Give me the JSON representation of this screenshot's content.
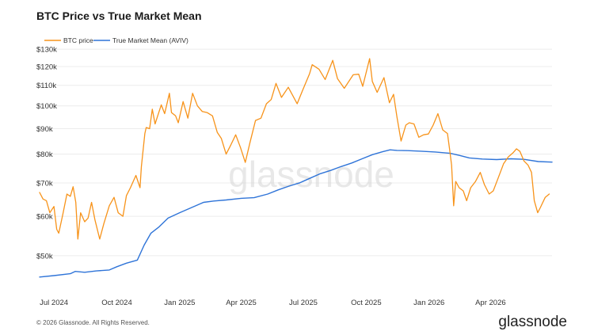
{
  "chart_data": {
    "type": "line",
    "title": "BTC Price vs True Market Mean",
    "ylabel": "",
    "xlabel": "",
    "y_scale": "log",
    "ylim": [
      43000,
      132000
    ],
    "x_range": [
      "2024-06-10",
      "2026-06-30"
    ],
    "grid": {
      "y": true,
      "x": false
    },
    "legend_position": "top-left",
    "y_ticks": [
      {
        "value": 130000,
        "label": "$130k"
      },
      {
        "value": 120000,
        "label": "$120k"
      },
      {
        "value": 110000,
        "label": "$110k"
      },
      {
        "value": 100000,
        "label": "$100k"
      },
      {
        "value": 90000,
        "label": "$90k"
      },
      {
        "value": 80000,
        "label": "$80k"
      },
      {
        "value": 70000,
        "label": "$70k"
      },
      {
        "value": 60000,
        "label": "$60k"
      },
      {
        "value": 50000,
        "label": "$50k"
      }
    ],
    "x_ticks": [
      {
        "date": "2024-07-01",
        "label": "Jul 2024"
      },
      {
        "date": "2024-10-01",
        "label": "Oct 2024"
      },
      {
        "date": "2025-01-01",
        "label": "Jan 2025"
      },
      {
        "date": "2025-04-01",
        "label": "Apr 2025"
      },
      {
        "date": "2025-07-01",
        "label": "Jul 2025"
      },
      {
        "date": "2025-10-01",
        "label": "Oct 2025"
      },
      {
        "date": "2026-01-01",
        "label": "Jan 2026"
      },
      {
        "date": "2026-04-01",
        "label": "Apr 2026"
      }
    ],
    "series": [
      {
        "name": "BTC price",
        "color": "#f7931a",
        "points": [
          [
            "2024-06-10",
            67000
          ],
          [
            "2024-06-15",
            65000
          ],
          [
            "2024-06-20",
            64500
          ],
          [
            "2024-06-25",
            61000
          ],
          [
            "2024-07-01",
            62800
          ],
          [
            "2024-07-05",
            56500
          ],
          [
            "2024-07-08",
            55500
          ],
          [
            "2024-07-14",
            60500
          ],
          [
            "2024-07-20",
            66500
          ],
          [
            "2024-07-25",
            65800
          ],
          [
            "2024-07-29",
            68800
          ],
          [
            "2024-08-02",
            64000
          ],
          [
            "2024-08-05",
            54000
          ],
          [
            "2024-08-09",
            61000
          ],
          [
            "2024-08-15",
            58500
          ],
          [
            "2024-08-20",
            59500
          ],
          [
            "2024-08-25",
            64000
          ],
          [
            "2024-08-30",
            59000
          ],
          [
            "2024-09-06",
            54000
          ],
          [
            "2024-09-12",
            58000
          ],
          [
            "2024-09-20",
            63000
          ],
          [
            "2024-09-27",
            65500
          ],
          [
            "2024-10-03",
            61000
          ],
          [
            "2024-10-10",
            60000
          ],
          [
            "2024-10-15",
            66000
          ],
          [
            "2024-10-21",
            68500
          ],
          [
            "2024-10-29",
            72500
          ],
          [
            "2024-11-04",
            68500
          ],
          [
            "2024-11-06",
            75500
          ],
          [
            "2024-11-11",
            88000
          ],
          [
            "2024-11-13",
            90500
          ],
          [
            "2024-11-18",
            90000
          ],
          [
            "2024-11-22",
            98500
          ],
          [
            "2024-11-26",
            92000
          ],
          [
            "2024-12-05",
            100500
          ],
          [
            "2024-12-10",
            96500
          ],
          [
            "2024-12-17",
            106000
          ],
          [
            "2024-12-20",
            97000
          ],
          [
            "2024-12-26",
            95500
          ],
          [
            "2024-12-30",
            92500
          ],
          [
            "2025-01-06",
            102000
          ],
          [
            "2025-01-13",
            94500
          ],
          [
            "2025-01-20",
            106000
          ],
          [
            "2025-01-27",
            100000
          ],
          [
            "2025-02-03",
            97500
          ],
          [
            "2025-02-10",
            97000
          ],
          [
            "2025-02-18",
            95500
          ],
          [
            "2025-02-25",
            88500
          ],
          [
            "2025-03-03",
            86000
          ],
          [
            "2025-03-10",
            80000
          ],
          [
            "2025-03-17",
            83500
          ],
          [
            "2025-03-24",
            87500
          ],
          [
            "2025-03-31",
            82500
          ],
          [
            "2025-04-07",
            77000
          ],
          [
            "2025-04-14",
            84500
          ],
          [
            "2025-04-22",
            93500
          ],
          [
            "2025-04-30",
            94500
          ],
          [
            "2025-05-08",
            101000
          ],
          [
            "2025-05-15",
            103000
          ],
          [
            "2025-05-22",
            111000
          ],
          [
            "2025-05-30",
            104000
          ],
          [
            "2025-06-09",
            109000
          ],
          [
            "2025-06-22",
            101000
          ],
          [
            "2025-06-30",
            107500
          ],
          [
            "2025-07-10",
            116000
          ],
          [
            "2025-07-14",
            121000
          ],
          [
            "2025-07-24",
            118500
          ],
          [
            "2025-08-02",
            113000
          ],
          [
            "2025-08-13",
            123500
          ],
          [
            "2025-08-20",
            113500
          ],
          [
            "2025-08-30",
            108500
          ],
          [
            "2025-09-12",
            115500
          ],
          [
            "2025-09-20",
            115800
          ],
          [
            "2025-09-26",
            109500
          ],
          [
            "2025-10-06",
            124500
          ],
          [
            "2025-10-10",
            112000
          ],
          [
            "2025-10-17",
            106500
          ],
          [
            "2025-10-27",
            114000
          ],
          [
            "2025-11-04",
            101500
          ],
          [
            "2025-11-10",
            105500
          ],
          [
            "2025-11-15",
            95000
          ],
          [
            "2025-11-21",
            85000
          ],
          [
            "2025-11-28",
            91500
          ],
          [
            "2025-12-03",
            92500
          ],
          [
            "2025-12-10",
            92000
          ],
          [
            "2025-12-17",
            86500
          ],
          [
            "2025-12-24",
            87500
          ],
          [
            "2025-12-31",
            87800
          ],
          [
            "2026-01-07",
            91500
          ],
          [
            "2026-01-14",
            96500
          ],
          [
            "2026-01-21",
            89500
          ],
          [
            "2026-01-28",
            88000
          ],
          [
            "2026-01-31",
            82000
          ],
          [
            "2026-02-03",
            76000
          ],
          [
            "2026-02-06",
            63000
          ],
          [
            "2026-02-09",
            70500
          ],
          [
            "2026-02-14",
            68500
          ],
          [
            "2026-02-20",
            67500
          ],
          [
            "2026-02-25",
            64500
          ],
          [
            "2026-03-03",
            68500
          ],
          [
            "2026-03-10",
            70500
          ],
          [
            "2026-03-17",
            73500
          ],
          [
            "2026-03-23",
            69500
          ],
          [
            "2026-03-30",
            66500
          ],
          [
            "2026-04-05",
            67500
          ],
          [
            "2026-04-12",
            71500
          ],
          [
            "2026-04-20",
            76500
          ],
          [
            "2026-04-27",
            79000
          ],
          [
            "2026-05-04",
            80500
          ],
          [
            "2026-05-09",
            82000
          ],
          [
            "2026-05-14",
            81000
          ],
          [
            "2026-05-20",
            77500
          ],
          [
            "2026-05-26",
            76000
          ],
          [
            "2026-05-31",
            73500
          ],
          [
            "2026-06-04",
            64500
          ],
          [
            "2026-06-09",
            61000
          ],
          [
            "2026-06-13",
            62500
          ],
          [
            "2026-06-20",
            65500
          ],
          [
            "2026-06-26",
            66500
          ]
        ]
      },
      {
        "name": "True Market Mean (AVIV)",
        "color": "#2f74d8",
        "points": [
          [
            "2024-06-10",
            45300
          ],
          [
            "2024-07-01",
            45600
          ],
          [
            "2024-07-25",
            46000
          ],
          [
            "2024-08-01",
            46500
          ],
          [
            "2024-08-15",
            46300
          ],
          [
            "2024-09-01",
            46600
          ],
          [
            "2024-09-20",
            46800
          ],
          [
            "2024-10-01",
            47500
          ],
          [
            "2024-10-15",
            48300
          ],
          [
            "2024-10-31",
            49000
          ],
          [
            "2024-11-10",
            52500
          ],
          [
            "2024-11-20",
            55500
          ],
          [
            "2024-12-01",
            57000
          ],
          [
            "2024-12-15",
            59500
          ],
          [
            "2025-01-01",
            61000
          ],
          [
            "2025-01-20",
            62600
          ],
          [
            "2025-02-05",
            64000
          ],
          [
            "2025-02-20",
            64400
          ],
          [
            "2025-03-10",
            64700
          ],
          [
            "2025-04-01",
            65200
          ],
          [
            "2025-04-20",
            65400
          ],
          [
            "2025-05-10",
            66500
          ],
          [
            "2025-05-25",
            67800
          ],
          [
            "2025-06-10",
            69000
          ],
          [
            "2025-06-25",
            70000
          ],
          [
            "2025-07-10",
            71500
          ],
          [
            "2025-07-25",
            73000
          ],
          [
            "2025-08-10",
            74200
          ],
          [
            "2025-08-25",
            75500
          ],
          [
            "2025-09-10",
            76800
          ],
          [
            "2025-09-25",
            78300
          ],
          [
            "2025-10-10",
            79800
          ],
          [
            "2025-10-25",
            80900
          ],
          [
            "2025-11-05",
            81600
          ],
          [
            "2025-11-15",
            81400
          ],
          [
            "2025-12-01",
            81300
          ],
          [
            "2025-12-20",
            81100
          ],
          [
            "2026-01-10",
            80800
          ],
          [
            "2026-02-01",
            80300
          ],
          [
            "2026-02-15",
            79500
          ],
          [
            "2026-03-01",
            78600
          ],
          [
            "2026-03-20",
            78200
          ],
          [
            "2026-04-10",
            78000
          ],
          [
            "2026-05-01",
            78300
          ],
          [
            "2026-05-20",
            78100
          ],
          [
            "2026-06-10",
            77300
          ],
          [
            "2026-06-30",
            77100
          ]
        ]
      }
    ]
  },
  "watermark": "glassnode",
  "footer": {
    "copyright": "© 2026 Glassnode. All Rights Reserved.",
    "brand": "glassnode"
  }
}
